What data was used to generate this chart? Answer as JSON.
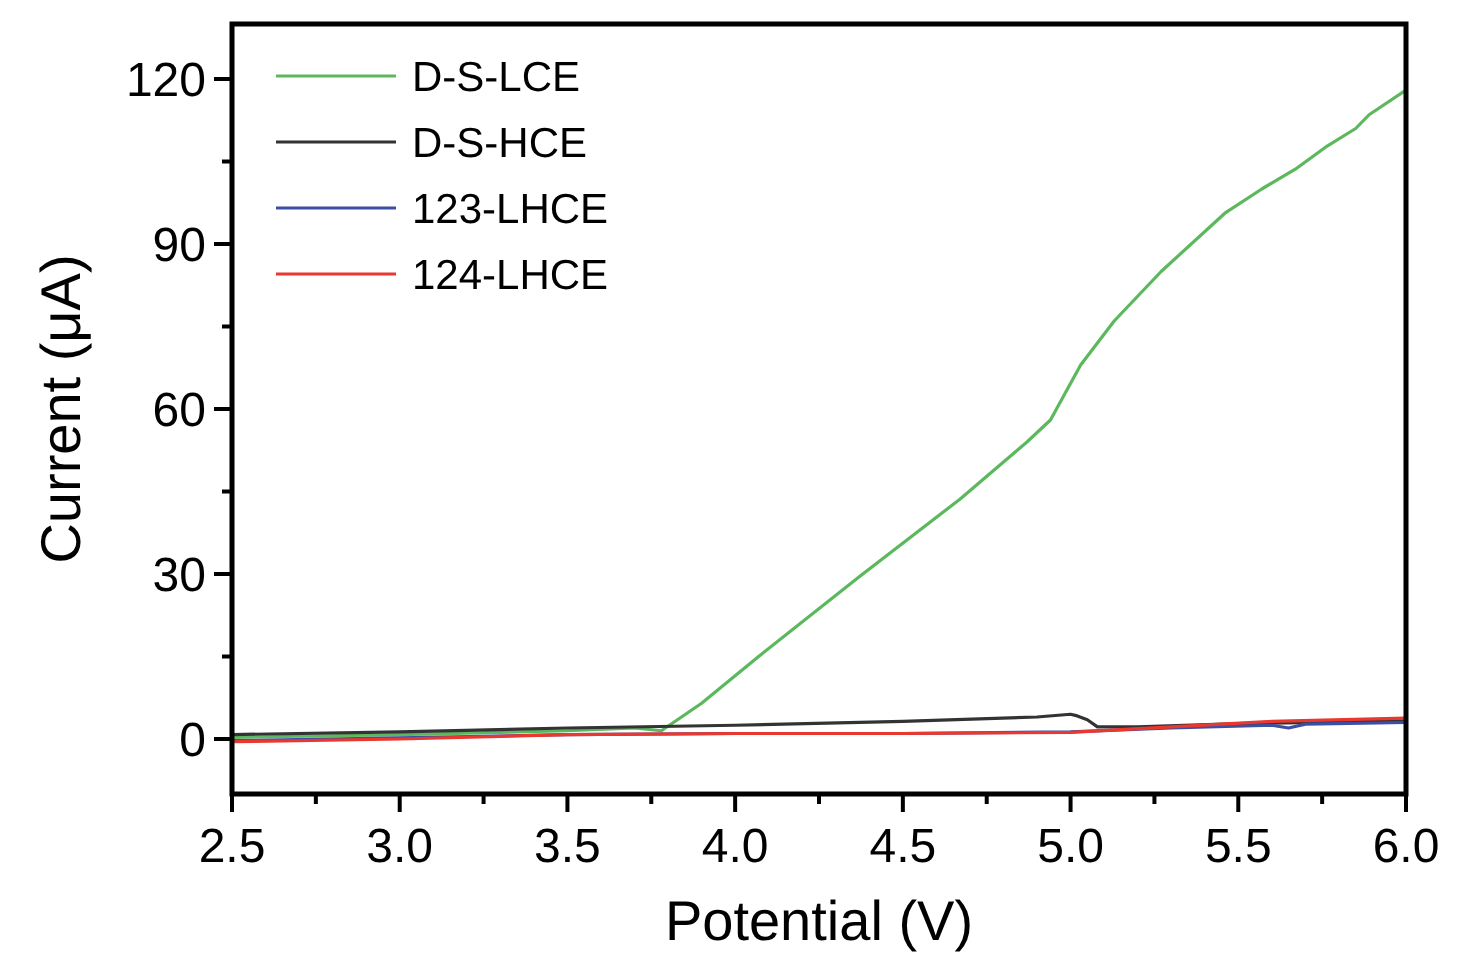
{
  "chart_data": {
    "type": "line",
    "xlabel": "Potential (V)",
    "ylabel": "Current (μA)",
    "xlim": [
      2.5,
      6.0
    ],
    "ylim": [
      -10,
      130
    ],
    "xticks": [
      2.5,
      {
        "value": 2.75,
        "label": null
      },
      {
        "value": 3.0,
        "label": "3.0"
      },
      {
        "value": 3.25,
        "label": null
      },
      3.5,
      {
        "value": 3.75,
        "label": null
      },
      {
        "value": 4.0,
        "label": "4.0"
      },
      {
        "value": 4.25,
        "label": null
      },
      4.5,
      {
        "value": 4.75,
        "label": null
      },
      {
        "value": 5.0,
        "label": "5.0"
      },
      {
        "value": 5.25,
        "label": null
      },
      5.5,
      {
        "value": 5.75,
        "label": null
      },
      {
        "value": 6.0,
        "label": "6.0"
      }
    ],
    "yticks": [
      0,
      {
        "value": 15,
        "label": null
      },
      30,
      {
        "value": 45,
        "label": null
      },
      60,
      {
        "value": 75,
        "label": null
      },
      90,
      {
        "value": 105,
        "label": null
      },
      120
    ],
    "grid": false,
    "legend": "top left",
    "line_style": "solid",
    "series": [
      {
        "name": "D-S-LCE",
        "color": "#5cb85c",
        "x": [
          2.5,
          3.0,
          3.5,
          3.7,
          3.78,
          3.9,
          4.07,
          4.37,
          4.67,
          4.87,
          4.94,
          5.03,
          5.13,
          5.27,
          5.46,
          5.57,
          5.67,
          5.76,
          5.85,
          5.89,
          6.0
        ],
        "values": [
          0.3,
          0.8,
          1.5,
          2,
          1.5,
          6.5,
          15,
          29.5,
          43.6,
          54,
          58,
          68,
          76,
          85,
          95.6,
          100,
          103.6,
          107.6,
          111,
          113.5,
          118
        ]
      },
      {
        "name": "D-S-HCE",
        "color": "#333333",
        "x": [
          2.5,
          3.0,
          3.5,
          4.0,
          4.5,
          4.9,
          5.0,
          5.02,
          5.05,
          5.08,
          5.2,
          5.5,
          6.0
        ],
        "values": [
          0.8,
          1.3,
          2,
          2.5,
          3.2,
          4,
          4.5,
          4.2,
          3.5,
          2.2,
          2.2,
          2.8,
          3.3
        ]
      },
      {
        "name": "123-LHCE",
        "color": "#3c4fa5",
        "x": [
          2.5,
          3.0,
          3.5,
          4.0,
          4.5,
          5.0,
          5.3,
          5.6,
          5.65,
          5.7,
          6.0
        ],
        "values": [
          -0.3,
          0.2,
          0.8,
          1.0,
          1.0,
          1.3,
          2.0,
          2.5,
          2.0,
          2.7,
          3.0
        ]
      },
      {
        "name": "124-LHCE",
        "color": "#e8382f",
        "x": [
          2.5,
          3.0,
          3.5,
          4.0,
          4.5,
          5.0,
          5.3,
          5.6,
          6.0
        ],
        "values": [
          -0.5,
          0,
          0.8,
          1.0,
          1.0,
          1.2,
          2.2,
          3.2,
          3.8
        ]
      }
    ]
  }
}
